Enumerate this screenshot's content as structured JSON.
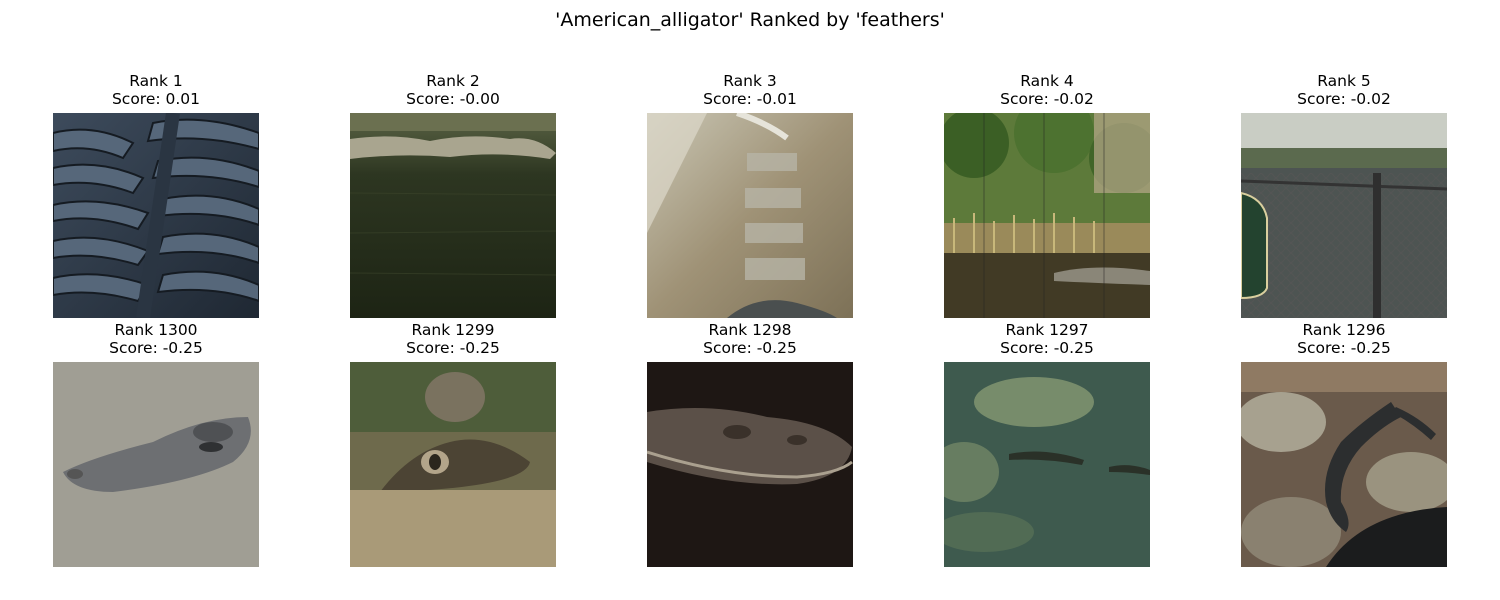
{
  "figure": {
    "title": "'American_alligator' Ranked by 'feathers'"
  },
  "panels": [
    {
      "rank": "Rank 1",
      "score": "Score: 0.01",
      "icon": "alligator-scales-photo"
    },
    {
      "rank": "Rank 2",
      "score": "Score: -0.00",
      "icon": "alligator-in-dark-water-photo"
    },
    {
      "rank": "Rank 3",
      "score": "Score: -0.01",
      "icon": "muddy-pool-photo"
    },
    {
      "rank": "Rank 4",
      "score": "Score: -0.02",
      "icon": "zoo-enclosure-trees-photo"
    },
    {
      "rank": "Rank 5",
      "score": "Score: -0.02",
      "icon": "chain-link-fence-pond-photo"
    },
    {
      "rank": "Rank 1300",
      "score": "Score: -0.25",
      "icon": "alligator-head-grey-water-photo"
    },
    {
      "rank": "Rank 1299",
      "score": "Score: -0.25",
      "icon": "alligator-eyes-closeup-photo"
    },
    {
      "rank": "Rank 1298",
      "score": "Score: -0.25",
      "icon": "alligator-dark-background-photo"
    },
    {
      "rank": "Rank 1297",
      "score": "Score: -0.25",
      "icon": "alligator-green-water-photo"
    },
    {
      "rank": "Rank 1296",
      "score": "Score: -0.25",
      "icon": "baby-alligator-on-rocks-photo"
    }
  ]
}
